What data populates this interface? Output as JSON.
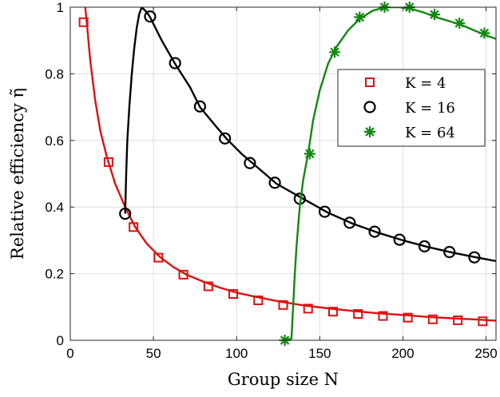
{
  "chart_data": {
    "type": "line",
    "xlabel": "Group size N",
    "ylabel": "Relative efficiency η̃",
    "xlim": [
      0,
      256
    ],
    "ylim": [
      0,
      1
    ],
    "xticks": [
      {
        "value": 0,
        "label": "0"
      },
      {
        "value": 50,
        "label": "50"
      },
      {
        "value": 100,
        "label": "100"
      },
      {
        "value": 150,
        "label": "150"
      },
      {
        "value": 200,
        "label": "200"
      },
      {
        "value": 250,
        "label": "250"
      }
    ],
    "yticks": [
      {
        "value": 0,
        "label": "0"
      },
      {
        "value": 0.2,
        "label": "0.2"
      },
      {
        "value": 0.4,
        "label": "0.4"
      },
      {
        "value": 0.6,
        "label": "0.6"
      },
      {
        "value": 0.8,
        "label": "0.8"
      },
      {
        "value": 1,
        "label": "1"
      }
    ],
    "grid": true,
    "legend_position": "top-right",
    "series": [
      {
        "name": "K = 4",
        "color": "#e01010",
        "marker": "square",
        "curve": [
          [
            9,
            1.0
          ],
          [
            10,
            0.95
          ],
          [
            12,
            0.84
          ],
          [
            15,
            0.72
          ],
          [
            18,
            0.63
          ],
          [
            22,
            0.55
          ],
          [
            27,
            0.47
          ],
          [
            33,
            0.4
          ],
          [
            39,
            0.34
          ],
          [
            46,
            0.29
          ],
          [
            54,
            0.25
          ],
          [
            62,
            0.22
          ],
          [
            70,
            0.197
          ],
          [
            80,
            0.176
          ],
          [
            90,
            0.158
          ],
          [
            100,
            0.143
          ],
          [
            112,
            0.13
          ],
          [
            125,
            0.117
          ],
          [
            140,
            0.105
          ],
          [
            155,
            0.096
          ],
          [
            170,
            0.088
          ],
          [
            185,
            0.081
          ],
          [
            200,
            0.076
          ],
          [
            215,
            0.07
          ],
          [
            230,
            0.066
          ],
          [
            245,
            0.062
          ],
          [
            256,
            0.059
          ]
        ],
        "points": [
          [
            8,
            0.955
          ],
          [
            23,
            0.535
          ],
          [
            38,
            0.34
          ],
          [
            53,
            0.248
          ],
          [
            68,
            0.197
          ],
          [
            83,
            0.162
          ],
          [
            98,
            0.139
          ],
          [
            113,
            0.12
          ],
          [
            128,
            0.106
          ],
          [
            143,
            0.095
          ],
          [
            158,
            0.086
          ],
          [
            173,
            0.079
          ],
          [
            188,
            0.073
          ],
          [
            203,
            0.068
          ],
          [
            218,
            0.063
          ],
          [
            233,
            0.06
          ],
          [
            248,
            0.057
          ]
        ]
      },
      {
        "name": "K = 16",
        "color": "#000000",
        "marker": "circle",
        "curve": [
          [
            33,
            0.38
          ],
          [
            33.6,
            0.5
          ],
          [
            34.3,
            0.6
          ],
          [
            35.5,
            0.7
          ],
          [
            37,
            0.8
          ],
          [
            38.5,
            0.88
          ],
          [
            40,
            0.94
          ],
          [
            41.5,
            0.98
          ],
          [
            43,
            1.0
          ],
          [
            46,
            0.985
          ],
          [
            48,
            0.97
          ],
          [
            55,
            0.9
          ],
          [
            63,
            0.83
          ],
          [
            72,
            0.76
          ],
          [
            78,
            0.7
          ],
          [
            88,
            0.64
          ],
          [
            94,
            0.605
          ],
          [
            103,
            0.56
          ],
          [
            110,
            0.53
          ],
          [
            124,
            0.47
          ],
          [
            140,
            0.425
          ],
          [
            155,
            0.383
          ],
          [
            170,
            0.35
          ],
          [
            185,
            0.323
          ],
          [
            200,
            0.3
          ],
          [
            215,
            0.28
          ],
          [
            230,
            0.263
          ],
          [
            245,
            0.248
          ],
          [
            256,
            0.238
          ]
        ],
        "points": [
          [
            33,
            0.38
          ],
          [
            48,
            0.972
          ],
          [
            63,
            0.832
          ],
          [
            78,
            0.702
          ],
          [
            93,
            0.606
          ],
          [
            108,
            0.532
          ],
          [
            123,
            0.473
          ],
          [
            138,
            0.425
          ],
          [
            153,
            0.386
          ],
          [
            168,
            0.353
          ],
          [
            183,
            0.326
          ],
          [
            198,
            0.302
          ],
          [
            213,
            0.282
          ],
          [
            228,
            0.265
          ],
          [
            243,
            0.249
          ]
        ]
      },
      {
        "name": "K = 64",
        "color": "#118811",
        "marker": "asterisk",
        "curve": [
          [
            129,
            0.0
          ],
          [
            133,
            0.005
          ],
          [
            134,
            0.1
          ],
          [
            135,
            0.2
          ],
          [
            136,
            0.28
          ],
          [
            137,
            0.34
          ],
          [
            138,
            0.4
          ],
          [
            140,
            0.48
          ],
          [
            143,
            0.56
          ],
          [
            146,
            0.66
          ],
          [
            150,
            0.75
          ],
          [
            155,
            0.83
          ],
          [
            160,
            0.88
          ],
          [
            167,
            0.93
          ],
          [
            174,
            0.965
          ],
          [
            182,
            0.99
          ],
          [
            190,
            1.0
          ],
          [
            198,
            1.0
          ],
          [
            205,
            0.995
          ],
          [
            212,
            0.985
          ],
          [
            220,
            0.97
          ],
          [
            228,
            0.958
          ],
          [
            236,
            0.945
          ],
          [
            244,
            0.928
          ],
          [
            252,
            0.912
          ],
          [
            256,
            0.905
          ]
        ],
        "points": [
          [
            129,
            0.0
          ],
          [
            144,
            0.56
          ],
          [
            159,
            0.865
          ],
          [
            174,
            0.97
          ],
          [
            189,
            1.0
          ],
          [
            204,
            1.0
          ],
          [
            219,
            0.978
          ],
          [
            234,
            0.952
          ],
          [
            249,
            0.922
          ]
        ]
      }
    ]
  }
}
